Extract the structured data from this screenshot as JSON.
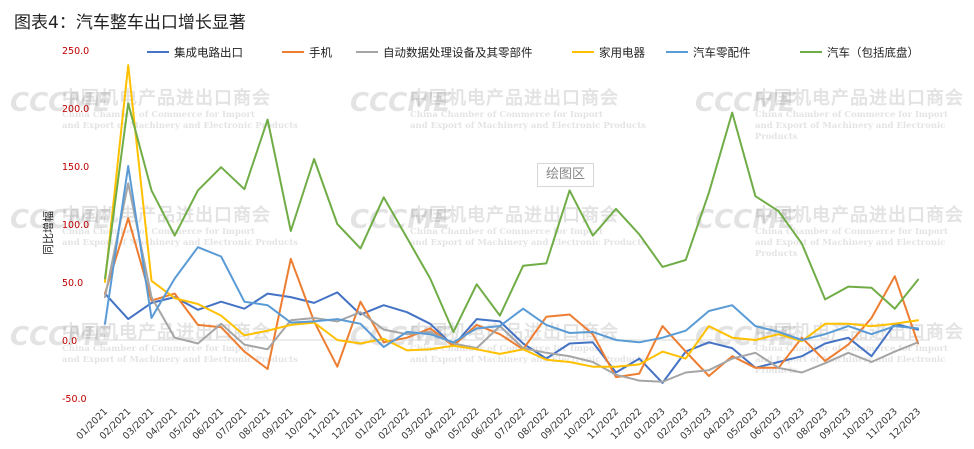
{
  "title": "图表4：汽车整车出口增长显著",
  "plot_area_label": "绘图区",
  "watermark": {
    "cn": "中国机电产品进出口商会",
    "en1": "China Chamber of Commerce for Import",
    "en2": "and Export of Machinery and Electronic Products",
    "logo": "CCCME"
  },
  "chart_data": {
    "type": "line",
    "title": "图表4：汽车整车出口增长显著",
    "ylabel": "同比增幅",
    "xlabel": "",
    "ylim": [
      -50,
      250
    ],
    "y_ticks": [
      "250.0",
      "200.0",
      "150.0",
      "100.0",
      "50.0",
      "0.0",
      "-50.0"
    ],
    "y_tick_values": [
      250,
      200,
      150,
      100,
      50,
      0,
      -50
    ],
    "grid": true,
    "legend_position": "top",
    "x": [
      "01/2021",
      "02/2021",
      "03/2021",
      "04/2021",
      "05/2021",
      "06/2021",
      "07/2021",
      "08/2021",
      "09/2021",
      "10/2021",
      "11/2021",
      "12/2021",
      "01/2022",
      "02/2022",
      "03/2022",
      "04/2022",
      "05/2022",
      "06/2022",
      "07/2022",
      "08/2022",
      "09/2022",
      "10/2022",
      "11/2022",
      "12/2022",
      "01/2023",
      "02/2023",
      "03/2023",
      "04/2023",
      "05/2023",
      "06/2023",
      "07/2023",
      "08/2023",
      "09/2023",
      "10/2023",
      "11/2023",
      "12/2023"
    ],
    "series": [
      {
        "name": "集成电路出口",
        "color": "#4472c4",
        "values": [
          40,
          18,
          32,
          37,
          26,
          33,
          27,
          40,
          37,
          32,
          41,
          22,
          30,
          24,
          14,
          -5,
          18,
          16,
          -3,
          -16,
          -3,
          -2,
          -28,
          -16,
          -37,
          -10,
          -2,
          -7,
          -24,
          -19,
          -14,
          -3,
          2,
          -14,
          14,
          9
        ]
      },
      {
        "name": "手机",
        "color": "#ed7d31",
        "values": [
          40,
          105,
          34,
          40,
          13,
          11,
          -10,
          -25,
          70,
          16,
          -23,
          33,
          -2,
          2,
          10,
          -5,
          13,
          5,
          -8,
          20,
          22,
          5,
          -32,
          -29,
          12,
          -10,
          -31,
          -14,
          -24,
          -24,
          2,
          -18,
          -4,
          19,
          55,
          -3
        ]
      },
      {
        "name": "自动数据处理设备及其零部件",
        "color": "#a5a5a5",
        "values": [
          37,
          135,
          37,
          2,
          -3,
          14,
          -4,
          -8,
          17,
          19,
          16,
          24,
          9,
          5,
          7,
          -3,
          -7,
          12,
          -7,
          -11,
          -14,
          -19,
          -30,
          -35,
          -36,
          -28,
          -26,
          -16,
          -11,
          -24,
          -28,
          -20,
          -11,
          -19,
          -10,
          -2
        ]
      },
      {
        "name": "家用电器",
        "color": "#ffc000",
        "values": [
          50,
          237,
          51,
          36,
          31,
          21,
          4,
          8,
          13,
          15,
          0,
          -3,
          1,
          -9,
          -8,
          -5,
          -8,
          -12,
          -8,
          -17,
          -19,
          -23,
          -23,
          -21,
          -10,
          -16,
          12,
          2,
          0,
          5,
          -1,
          14,
          14,
          12,
          14,
          17
        ]
      },
      {
        "name": "汽车零配件",
        "color": "#5b9bd5",
        "values": [
          14,
          150,
          19,
          53,
          80,
          72,
          33,
          30,
          15,
          16,
          18,
          14,
          -6,
          7,
          5,
          -2,
          10,
          12,
          27,
          13,
          6,
          7,
          0,
          -2,
          2,
          8,
          25,
          30,
          12,
          7,
          0,
          5,
          12,
          5,
          12,
          10
        ]
      },
      {
        "name": "汽车（包括底盘）",
        "color": "#70ad47",
        "values": [
          53,
          204,
          129,
          90,
          129,
          149,
          130,
          190,
          94,
          156,
          100,
          79,
          123,
          88,
          53,
          7,
          48,
          21,
          64,
          66,
          129,
          90,
          113,
          91,
          63,
          69,
          127,
          196,
          124,
          111,
          83,
          35,
          46,
          45,
          27,
          52
        ]
      }
    ]
  }
}
